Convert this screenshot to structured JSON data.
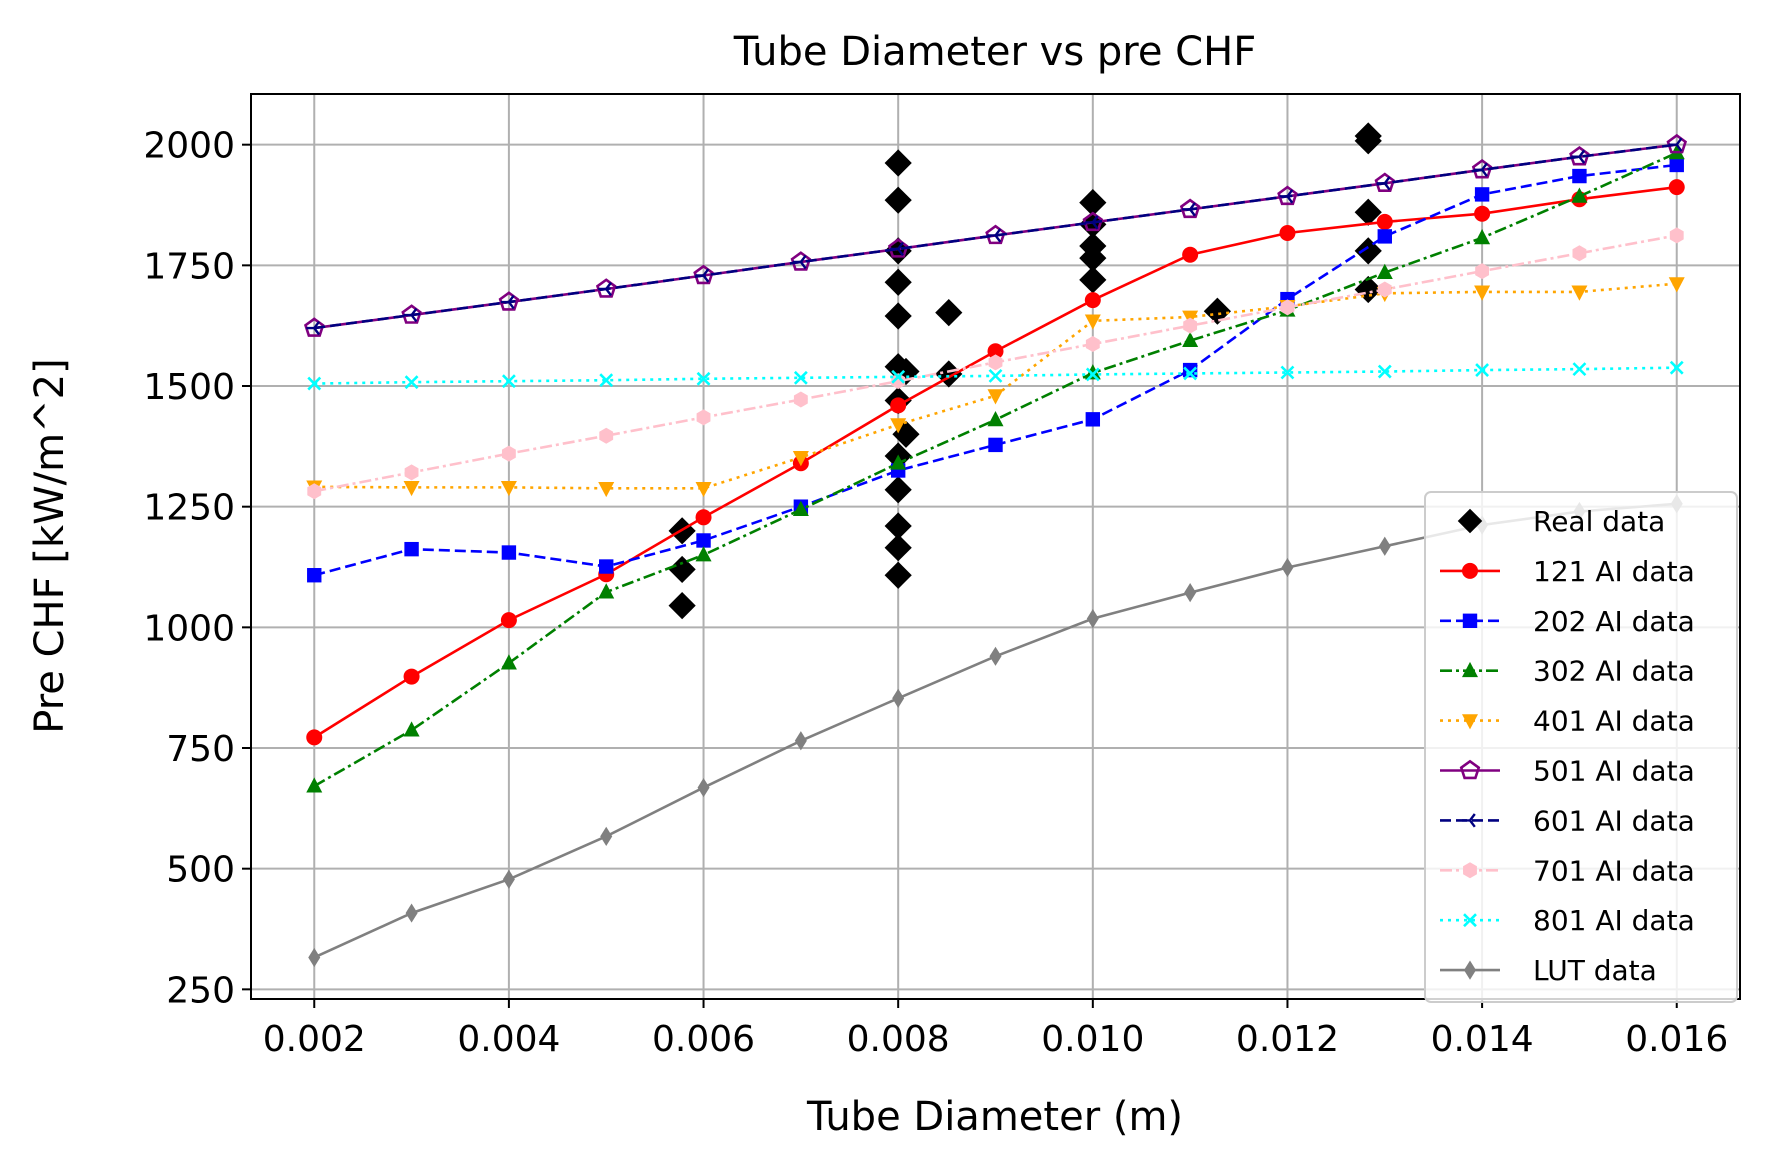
{
  "chart_data": {
    "type": "line",
    "title": "Tube Diameter vs pre CHF",
    "xlabel": "Tube Diameter (m)",
    "ylabel": "Pre CHF [kW/m^2]",
    "xlim": [
      0.00135,
      0.01665
    ],
    "ylim": [
      230,
      2105
    ],
    "xticks": [
      0.002,
      0.004,
      0.006,
      0.008,
      0.01,
      0.012,
      0.014,
      0.016
    ],
    "xtick_labels": [
      "0.002",
      "0.004",
      "0.006",
      "0.008",
      "0.010",
      "0.012",
      "0.014",
      "0.016"
    ],
    "yticks": [
      250,
      500,
      750,
      1000,
      1250,
      1500,
      1750,
      2000
    ],
    "ytick_labels": [
      "250",
      "500",
      "750",
      "1000",
      "1250",
      "1500",
      "1750",
      "2000"
    ],
    "grid": true,
    "legend_position": "lower-right",
    "x": [
      0.002,
      0.003,
      0.004,
      0.005,
      0.006,
      0.007,
      0.008,
      0.009,
      0.01,
      0.011,
      0.012,
      0.013,
      0.014,
      0.015,
      0.016
    ],
    "series": [
      {
        "name": "121 AI data",
        "color": "#ff0000",
        "marker": "circle",
        "linestyle": "solid",
        "values": [
          772,
          898,
          1015,
          1110,
          1228,
          1340,
          1460,
          1572,
          1678,
          1772,
          1817,
          1840,
          1857,
          1887,
          1912
        ]
      },
      {
        "name": "202 AI data",
        "color": "#0000ff",
        "marker": "square",
        "linestyle": "dashed",
        "values": [
          1108,
          1162,
          1155,
          1126,
          1180,
          1250,
          1325,
          1378,
          1431,
          1533,
          1680,
          1810,
          1897,
          1935,
          1958
        ]
      },
      {
        "name": "302 AI data",
        "color": "#008000",
        "marker": "triangle-up",
        "linestyle": "dashdot",
        "values": [
          671,
          787,
          926,
          1073,
          1150,
          1244,
          1340,
          1430,
          1527,
          1594,
          1657,
          1735,
          1807,
          1893,
          1983
        ]
      },
      {
        "name": "401 AI data",
        "color": "#ffa500",
        "marker": "triangle-down",
        "linestyle": "dotted",
        "values": [
          1291,
          1290,
          1290,
          1288,
          1288,
          1352,
          1420,
          1480,
          1635,
          1643,
          1665,
          1692,
          1695,
          1695,
          1712
        ]
      },
      {
        "name": "501 AI data",
        "color": "#800080",
        "marker": "pentagon-open",
        "linestyle": "solid",
        "values": [
          1620,
          1647,
          1674,
          1701,
          1729,
          1757,
          1784,
          1812,
          1839,
          1866,
          1893,
          1920,
          1948,
          1975,
          2000
        ]
      },
      {
        "name": "601 AI data",
        "color": "#000080",
        "marker": "tri-left",
        "linestyle": "dashed",
        "values": [
          1620,
          1647,
          1674,
          1701,
          1729,
          1757,
          1784,
          1812,
          1839,
          1866,
          1893,
          1920,
          1948,
          1975,
          2000
        ]
      },
      {
        "name": "701 AI data",
        "color": "#ffc0cb",
        "marker": "hexagon",
        "linestyle": "dashdot",
        "values": [
          1282,
          1321,
          1360,
          1397,
          1435,
          1472,
          1510,
          1549,
          1587,
          1625,
          1663,
          1700,
          1738,
          1775,
          1812
        ]
      },
      {
        "name": "801 AI data",
        "color": "#00ffff",
        "marker": "x",
        "linestyle": "dotted",
        "values": [
          1505,
          1508,
          1510,
          1512,
          1515,
          1517,
          1519,
          1521,
          1524,
          1526,
          1528,
          1530,
          1533,
          1535,
          1538
        ]
      },
      {
        "name": "LUT data",
        "color": "#808080",
        "marker": "thin-diamond",
        "linestyle": "solid",
        "values": [
          316,
          408,
          478,
          567,
          668,
          765,
          853,
          940,
          1018,
          1072,
          1124,
          1168,
          1212,
          1240,
          1256
        ]
      }
    ],
    "real_data": {
      "name": "Real data",
      "color": "#000000",
      "marker": "diamond",
      "points": [
        {
          "x": 0.00578,
          "y": 1200
        },
        {
          "x": 0.00578,
          "y": 1120
        },
        {
          "x": 0.00578,
          "y": 1045
        },
        {
          "x": 0.008,
          "y": 1962
        },
        {
          "x": 0.008,
          "y": 1885
        },
        {
          "x": 0.008,
          "y": 1780
        },
        {
          "x": 0.008,
          "y": 1715
        },
        {
          "x": 0.008,
          "y": 1645
        },
        {
          "x": 0.008,
          "y": 1540
        },
        {
          "x": 0.008,
          "y": 1470
        },
        {
          "x": 0.008,
          "y": 1355
        },
        {
          "x": 0.008,
          "y": 1285
        },
        {
          "x": 0.008,
          "y": 1210
        },
        {
          "x": 0.008,
          "y": 1165
        },
        {
          "x": 0.008,
          "y": 1108
        },
        {
          "x": 0.00808,
          "y": 1530
        },
        {
          "x": 0.00808,
          "y": 1400
        },
        {
          "x": 0.00852,
          "y": 1652
        },
        {
          "x": 0.00852,
          "y": 1525
        },
        {
          "x": 0.01,
          "y": 1880
        },
        {
          "x": 0.01,
          "y": 1835
        },
        {
          "x": 0.01,
          "y": 1790
        },
        {
          "x": 0.01,
          "y": 1765
        },
        {
          "x": 0.01,
          "y": 1720
        },
        {
          "x": 0.01128,
          "y": 1655
        },
        {
          "x": 0.01283,
          "y": 2018
        },
        {
          "x": 0.01283,
          "y": 2008
        },
        {
          "x": 0.01283,
          "y": 1860
        },
        {
          "x": 0.01283,
          "y": 1780
        },
        {
          "x": 0.01283,
          "y": 1700
        }
      ]
    }
  }
}
